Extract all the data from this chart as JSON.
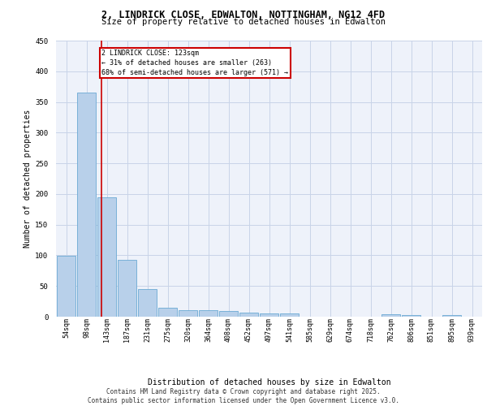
{
  "title_line1": "2, LINDRICK CLOSE, EDWALTON, NOTTINGHAM, NG12 4FD",
  "title_line2": "Size of property relative to detached houses in Edwalton",
  "xlabel": "Distribution of detached houses by size in Edwalton",
  "ylabel": "Number of detached properties",
  "footer_line1": "Contains HM Land Registry data © Crown copyright and database right 2025.",
  "footer_line2": "Contains public sector information licensed under the Open Government Licence v3.0.",
  "bin_labels": [
    "54sqm",
    "98sqm",
    "143sqm",
    "187sqm",
    "231sqm",
    "275sqm",
    "320sqm",
    "364sqm",
    "408sqm",
    "452sqm",
    "497sqm",
    "541sqm",
    "585sqm",
    "629sqm",
    "674sqm",
    "718sqm",
    "762sqm",
    "806sqm",
    "851sqm",
    "895sqm",
    "939sqm"
  ],
  "bar_heights": [
    99,
    365,
    195,
    93,
    45,
    14,
    11,
    10,
    9,
    6,
    5,
    5,
    0,
    0,
    0,
    0,
    4,
    3,
    0,
    2,
    0
  ],
  "bar_color": "#b8d0ea",
  "bar_edge_color": "#6aaad4",
  "grid_color": "#c8d4e8",
  "background_color": "#eef2fa",
  "red_line_x": 1.72,
  "annotation_text": "2 LINDRICK CLOSE: 123sqm\n← 31% of detached houses are smaller (263)\n68% of semi-detached houses are larger (571) →",
  "annotation_box_color": "#ffffff",
  "annotation_box_edge_color": "#cc0000",
  "red_line_color": "#cc0000",
  "ylim": [
    0,
    450
  ],
  "yticks": [
    0,
    50,
    100,
    150,
    200,
    250,
    300,
    350,
    400,
    450
  ]
}
